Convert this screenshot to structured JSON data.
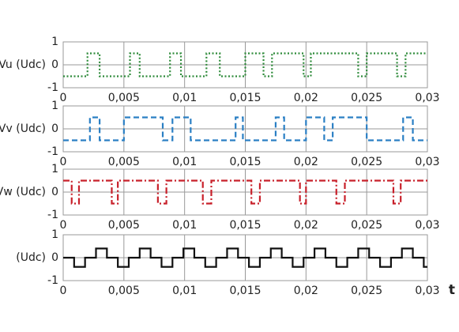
{
  "chart_data": [
    {
      "type": "line",
      "ylabel": "Vu (Udc)",
      "step": true,
      "color": "#2e8b3a",
      "dash": "2,2.5",
      "x": [
        0,
        0.002,
        0.003,
        0.0055,
        0.0063,
        0.0088,
        0.0097,
        0.0118,
        0.0129,
        0.015,
        0.0165,
        0.0172,
        0.0198,
        0.0204,
        0.0243,
        0.025,
        0.0275,
        0.0282,
        0.03
      ],
      "values": [
        -0.5,
        0.5,
        -0.5,
        0.5,
        -0.5,
        0.5,
        -0.5,
        0.5,
        -0.5,
        0.5,
        -0.5,
        0.5,
        -0.5,
        0.5,
        -0.5,
        0.5,
        -0.5,
        0.5,
        0.5
      ],
      "xlim": [
        0,
        0.03
      ],
      "xticks": [
        0,
        {
          "value": 0.005,
          "label": "0,005"
        },
        {
          "value": 0.01,
          "label": "0,01"
        },
        {
          "value": 0.015,
          "label": "0,015"
        },
        {
          "value": 0.02,
          "label": "0,02"
        },
        {
          "value": 0.025,
          "label": "0,025"
        },
        {
          "value": 0.03,
          "label": "0,03"
        }
      ],
      "ylim": [
        -1,
        1
      ],
      "yticks": [
        1,
        0,
        -1
      ],
      "grid": true
    },
    {
      "type": "line",
      "ylabel": "Vv (Udc)",
      "step": true,
      "color": "#2a7fc4",
      "dash": "7,4",
      "x": [
        0,
        0.0022,
        0.003,
        0.005,
        0.0082,
        0.009,
        0.0105,
        0.0142,
        0.0148,
        0.0175,
        0.0182,
        0.02,
        0.0215,
        0.0222,
        0.025,
        0.028,
        0.0288,
        0.03
      ],
      "values": [
        -0.5,
        0.5,
        -0.5,
        0.5,
        -0.5,
        0.5,
        -0.5,
        0.5,
        -0.5,
        0.5,
        -0.5,
        0.5,
        -0.5,
        0.5,
        -0.5,
        0.5,
        -0.5,
        -0.5
      ],
      "xlim": [
        0,
        0.03
      ],
      "xticks": [
        0,
        {
          "value": 0.005,
          "label": "0,005"
        },
        {
          "value": 0.01,
          "label": "0,01"
        },
        {
          "value": 0.015,
          "label": "0,015"
        },
        {
          "value": 0.02,
          "label": "0,02"
        },
        {
          "value": 0.025,
          "label": "0,025"
        },
        {
          "value": 0.03,
          "label": "0,03"
        }
      ],
      "ylim": [
        -1,
        1
      ],
      "yticks": [
        1,
        0,
        -1
      ],
      "grid": true
    },
    {
      "type": "line",
      "ylabel": "Vw (Udc)",
      "step": true,
      "color": "#c8202a",
      "dash": "8,3,2,3",
      "x": [
        0,
        0.0007,
        0.0013,
        0.004,
        0.0045,
        0.0078,
        0.0085,
        0.0115,
        0.0122,
        0.0155,
        0.0162,
        0.0195,
        0.02,
        0.0225,
        0.0232,
        0.0272,
        0.0278,
        0.03
      ],
      "values": [
        0.5,
        -0.5,
        0.5,
        -0.5,
        0.5,
        -0.5,
        0.5,
        -0.5,
        0.5,
        -0.5,
        0.5,
        -0.5,
        0.5,
        -0.5,
        0.5,
        -0.5,
        0.5,
        0.5
      ],
      "xlim": [
        0,
        0.03
      ],
      "xticks": [
        0,
        {
          "value": 0.005,
          "label": "0,005"
        },
        {
          "value": 0.01,
          "label": "0,01"
        },
        {
          "value": 0.015,
          "label": "0,015"
        },
        {
          "value": 0.02,
          "label": "0,02"
        },
        {
          "value": 0.025,
          "label": "0,025"
        },
        {
          "value": 0.03,
          "label": "0,03"
        }
      ],
      "ylim": [
        -1,
        1
      ],
      "yticks": [
        1,
        0,
        -1
      ],
      "grid": true
    },
    {
      "type": "line",
      "ylabel": "(Udc)",
      "xlabel": "t",
      "step": true,
      "color": "#111111",
      "x": [
        0,
        0.0009,
        0.0018,
        0.0027,
        0.0036,
        0.0045,
        0.0054,
        0.0063,
        0.0072,
        0.0081,
        0.009,
        0.0099,
        0.0108,
        0.0117,
        0.0126,
        0.0135,
        0.0144,
        0.0153,
        0.0162,
        0.0171,
        0.018,
        0.0189,
        0.0198,
        0.0207,
        0.0216,
        0.0225,
        0.0234,
        0.0243,
        0.0252,
        0.0261,
        0.027,
        0.0279,
        0.0288,
        0.0297,
        0.03
      ],
      "values": [
        0,
        -0.4,
        0,
        0.4,
        0,
        -0.4,
        0,
        0.4,
        0,
        -0.4,
        0,
        0.4,
        0,
        -0.4,
        0,
        0.4,
        0,
        -0.4,
        0,
        0.4,
        0,
        -0.4,
        0,
        0.4,
        0,
        -0.4,
        0,
        0.4,
        0,
        -0.4,
        0,
        0.4,
        0,
        -0.4,
        -0.4
      ],
      "xlim": [
        0,
        0.03
      ],
      "xticks": [
        0,
        {
          "value": 0.005,
          "label": "0,005"
        },
        {
          "value": 0.01,
          "label": "0,01"
        },
        {
          "value": 0.015,
          "label": "0,015"
        },
        {
          "value": 0.02,
          "label": "0,02"
        },
        {
          "value": 0.025,
          "label": "0,025"
        },
        {
          "value": 0.03,
          "label": "0,03"
        }
      ],
      "ylim": [
        -1,
        1
      ],
      "yticks": [
        1,
        0,
        -1
      ],
      "grid": true
    }
  ]
}
